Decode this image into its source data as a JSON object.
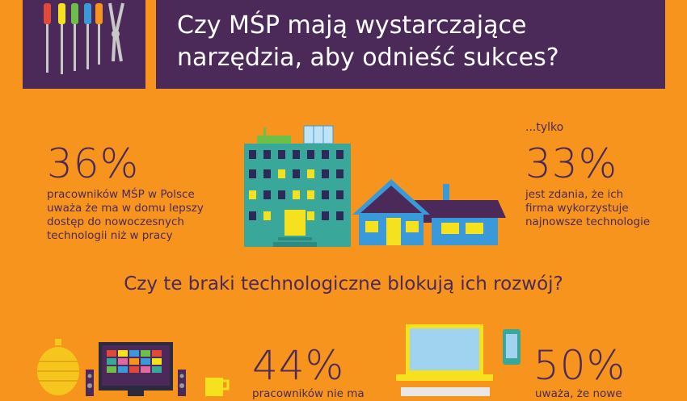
{
  "header": {
    "title_line1": "Czy MŚP mają wystarczające",
    "title_line2": "narzędzia, aby odnieść sukces?",
    "tools_icon": "tools-icon"
  },
  "stat_left": {
    "value": "36%",
    "line1": "pracowników MŚP w Polsce",
    "line2": "uważa że ma w domu lepszy",
    "line3": "dostęp do nowoczesnych",
    "line4": "technologii niż w pracy"
  },
  "stat_right": {
    "prefix": "...tylko",
    "value": "33%",
    "line1": "jest zdania, że ich",
    "line2": "firma wykorzystuje",
    "line3": "najnowsze technologie"
  },
  "question": "Czy te braki technologiczne blokują ich rozwój?",
  "stat_bottom_left": {
    "value": "44%",
    "partial": "pracowników nie ma"
  },
  "stat_bottom_right": {
    "value": "50%",
    "partial": "uważa, że nowe"
  },
  "colors": {
    "background": "#f7941d",
    "purple": "#4b2a5a",
    "teal": "#3aa79b",
    "blue": "#3a9ad9",
    "yellow": "#f5e11e"
  }
}
